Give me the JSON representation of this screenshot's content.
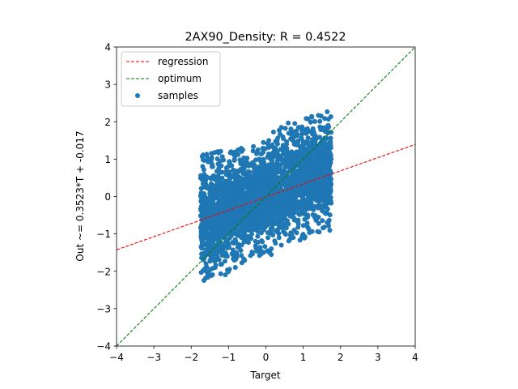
{
  "chart_data": {
    "type": "scatter",
    "title": "2AX90_Density: R = 0.4522",
    "xlabel": "Target",
    "ylabel": "Out ~= 0.3523*T + -0.017",
    "xlim": [
      -4,
      4
    ],
    "ylim": [
      -4,
      4
    ],
    "x_ticks": [
      "−4",
      "−3",
      "−2",
      "−1",
      "0",
      "1",
      "2",
      "3",
      "4"
    ],
    "y_ticks": [
      "−4",
      "−3",
      "−2",
      "−1",
      "0",
      "1",
      "2",
      "3",
      "4"
    ],
    "grid": false,
    "legend_position": "top-left",
    "legend": [
      "regression",
      "optimum",
      "samples"
    ],
    "series": [
      {
        "name": "regression",
        "kind": "line",
        "color": "#ff0000",
        "dash": "dashed",
        "slope": 0.3523,
        "intercept": -0.017
      },
      {
        "name": "optimum",
        "kind": "line",
        "color": "#008000",
        "dash": "dashed",
        "slope": 1.0,
        "intercept": 0.0
      },
      {
        "name": "samples",
        "kind": "scatter",
        "color": "#1f77b4",
        "x_range": [
          -1.75,
          1.75
        ],
        "envelope": [
          {
            "x": -1.75,
            "y_min": -2.3,
            "y_max": 1.1
          },
          {
            "x": -1.25,
            "y_min": -2.25,
            "y_max": 1.25
          },
          {
            "x": -0.75,
            "y_min": -1.85,
            "y_max": 1.3
          },
          {
            "x": -0.25,
            "y_min": -1.6,
            "y_max": 1.35
          },
          {
            "x": 0.25,
            "y_min": -1.55,
            "y_max": 1.9
          },
          {
            "x": 0.75,
            "y_min": -1.3,
            "y_max": 2.0
          },
          {
            "x": 1.25,
            "y_min": -1.0,
            "y_max": 2.2
          },
          {
            "x": 1.75,
            "y_min": -0.9,
            "y_max": 2.35
          }
        ]
      }
    ]
  }
}
